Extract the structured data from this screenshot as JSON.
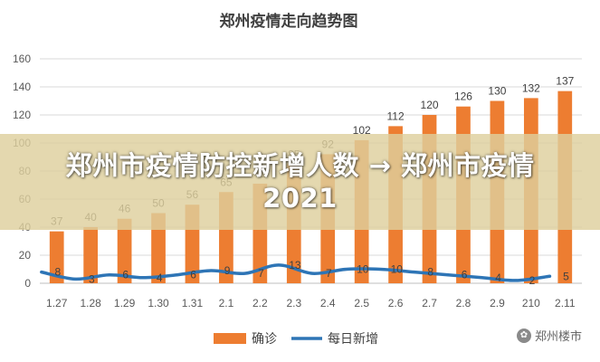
{
  "chart_data": {
    "type": "bar",
    "title": "郑州疫情走向趋势图",
    "categories": [
      "1.27",
      "1.28",
      "1.29",
      "1.30",
      "1.31",
      "2.1",
      "2.2",
      "2.3",
      "2.4",
      "2.5",
      "2.6",
      "2.7",
      "2.8",
      "2.9",
      "210",
      "2.11"
    ],
    "series": [
      {
        "name": "确诊",
        "type": "bar",
        "color": "#ED7D31",
        "values": [
          37,
          40,
          46,
          50,
          56,
          65,
          71,
          85,
          92,
          102,
          112,
          120,
          126,
          130,
          132,
          137
        ]
      },
      {
        "name": "每日新增",
        "type": "line",
        "color": "#2E75B6",
        "values": [
          8,
          3,
          6,
          4,
          6,
          9,
          7,
          13,
          7,
          10,
          10,
          8,
          6,
          4,
          2,
          5
        ]
      }
    ],
    "y_ticks": [
      "0",
      "20",
      "40",
      "60",
      "80",
      "100",
      "120",
      "140",
      "160"
    ],
    "ylim": [
      0,
      160
    ],
    "grid": true,
    "legend_position": "bottom"
  },
  "overlay": {
    "text": "郑州市疫情防控新增人数 → 郑州市疫情2021"
  },
  "watermark": {
    "text": "郑州楼市"
  }
}
